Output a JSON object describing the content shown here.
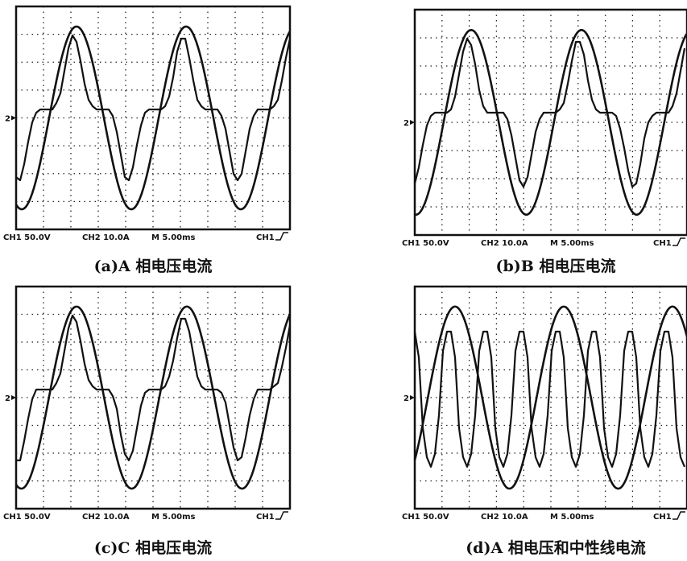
{
  "panels": [
    {
      "marker": "2",
      "channel1": "CH1 50.0V",
      "channel2": "CH2 10.0A",
      "timebase": "M 5.00ms",
      "trigger": "CH1",
      "caption": "(a)A 相电压电流"
    },
    {
      "marker": "2",
      "channel1": "CH1 50.0V",
      "channel2": "CH2 10.0A",
      "timebase": "M 5.00ms",
      "trigger": "CH1",
      "caption": "(b)B 相电压电流"
    },
    {
      "marker": "2",
      "channel1": "CH1 50.0V",
      "channel2": "CH2 10.0A",
      "timebase": "M 5.00ms",
      "trigger": "CH1",
      "caption": "(c)C 相电压电流"
    },
    {
      "marker": "2",
      "channel1": "CH1 50.0V",
      "channel2": "CH2 10.0A",
      "timebase": "M 5.00ms",
      "trigger": "CH1",
      "caption": "(d)A 相电压和中性线电流"
    }
  ]
}
